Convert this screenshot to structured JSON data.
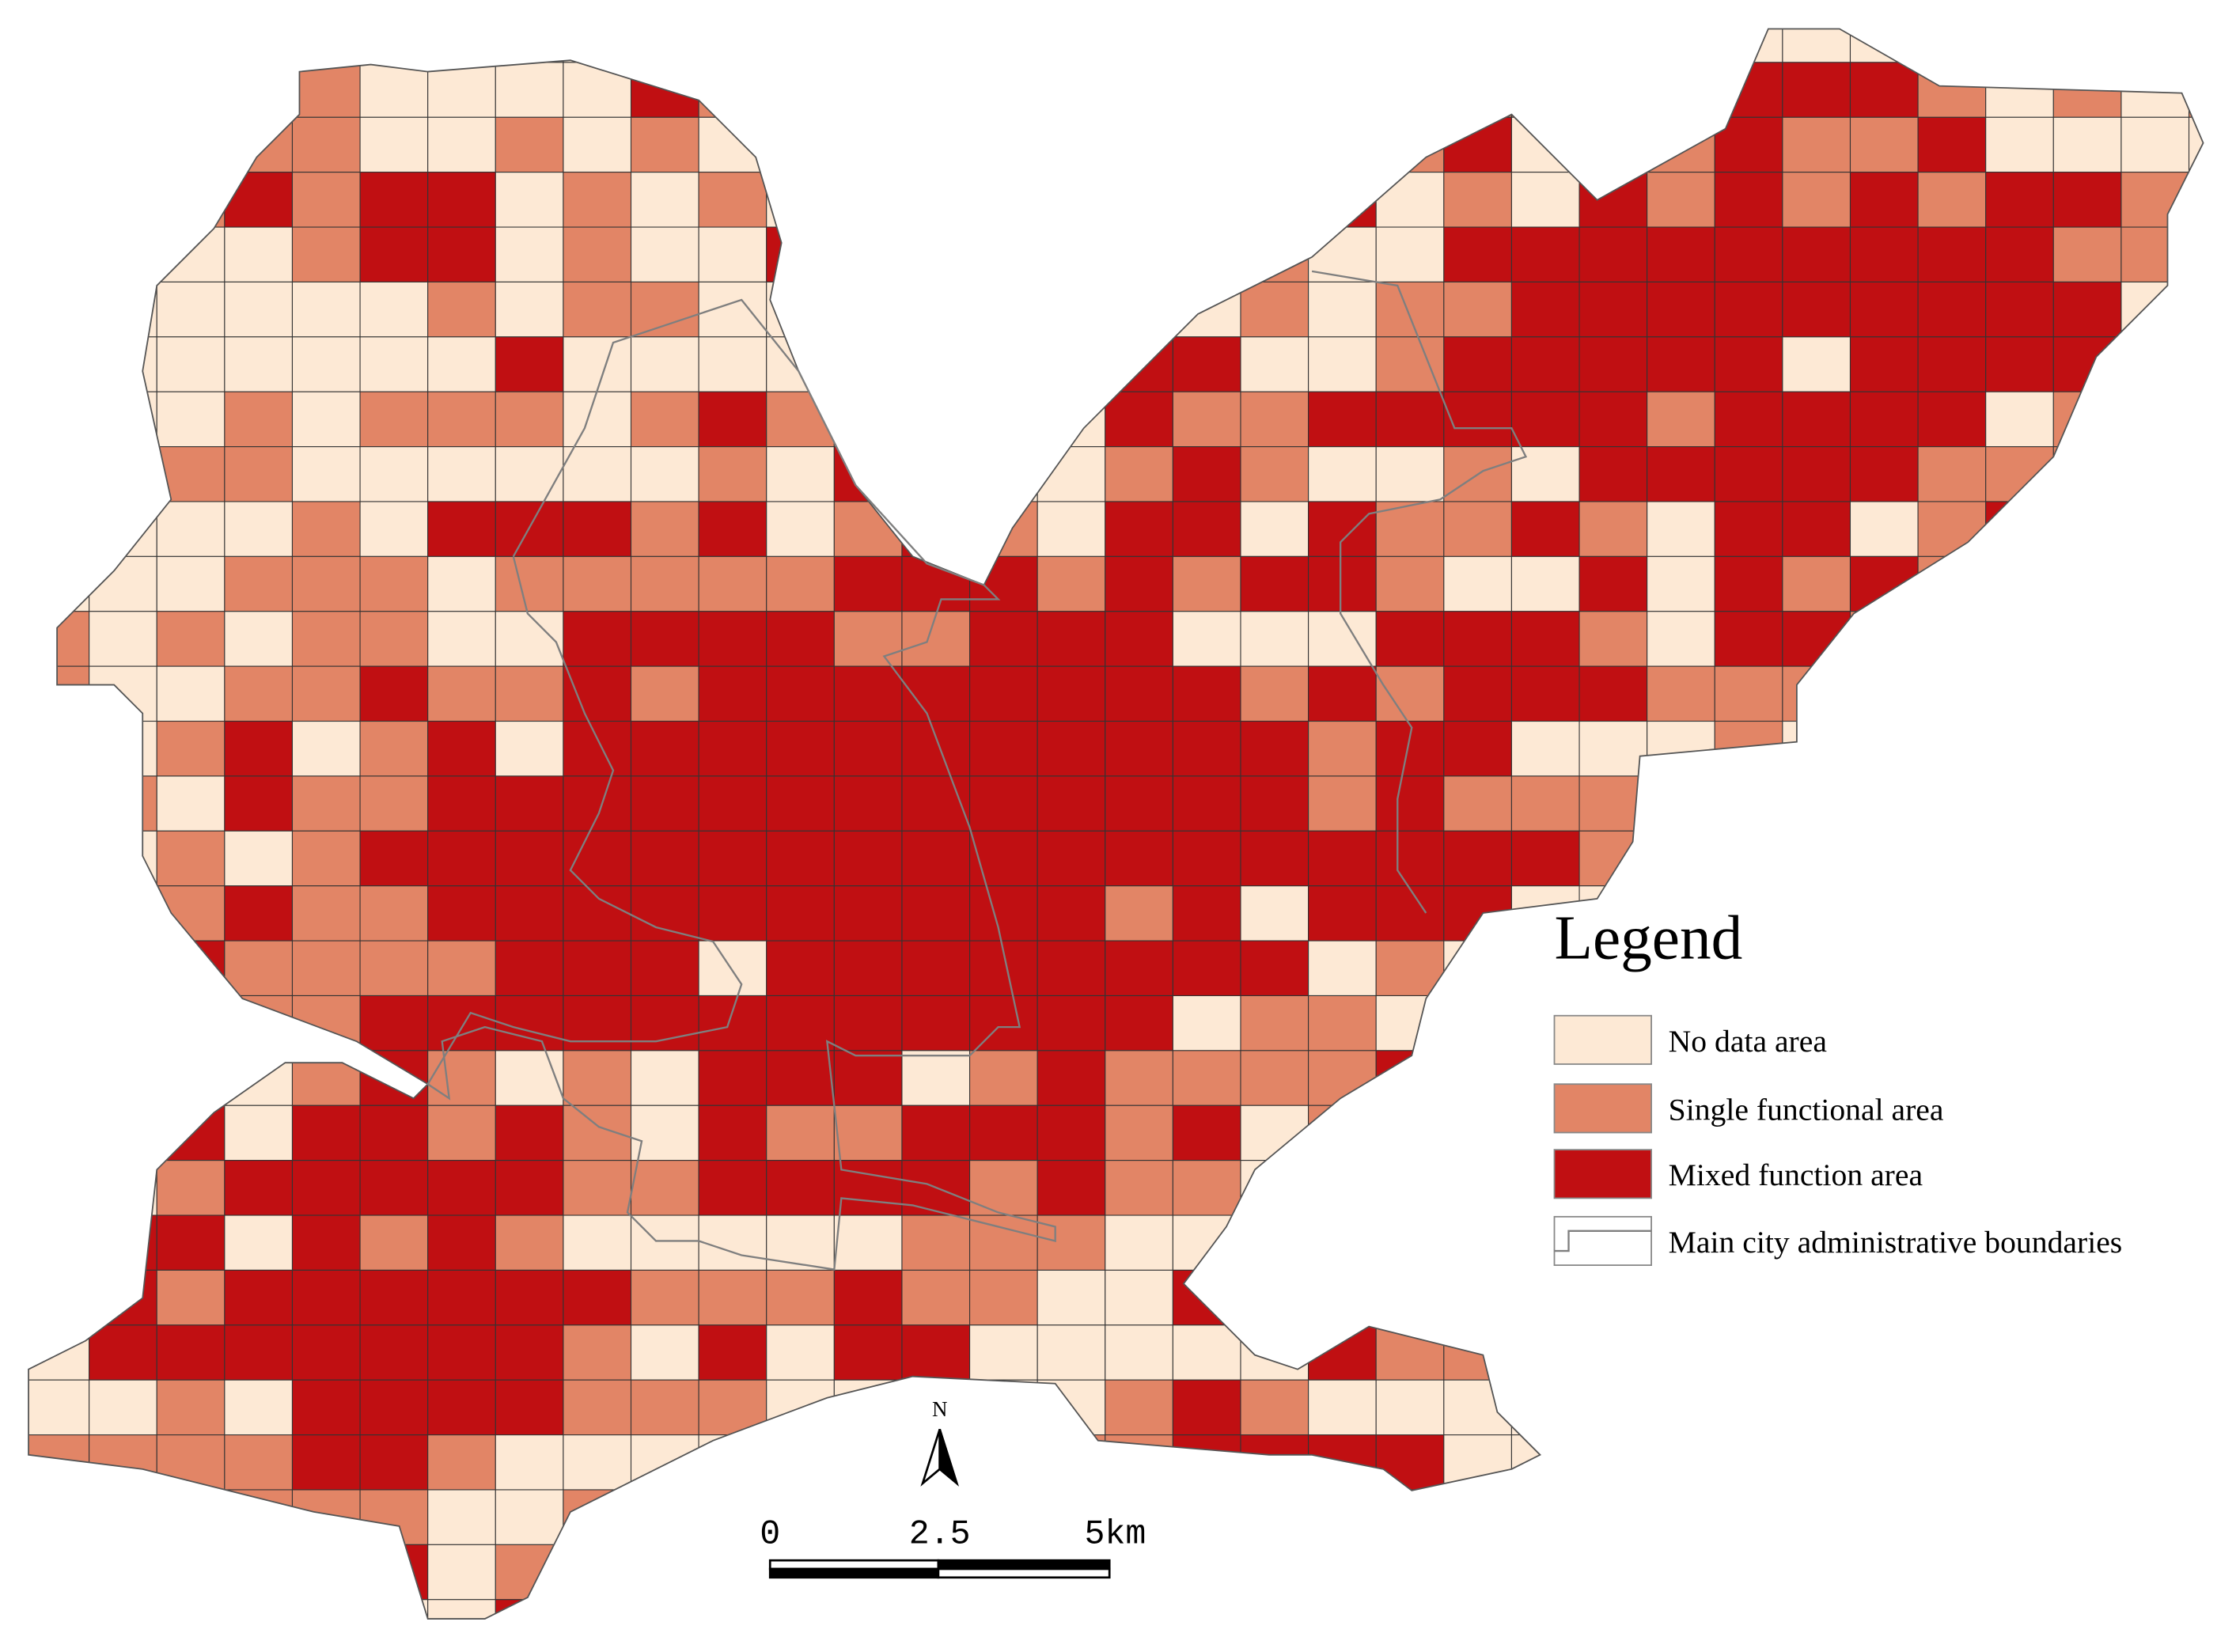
{
  "legend": {
    "title": "Legend",
    "items": [
      {
        "label": "No data area",
        "color": "#fde9d5"
      },
      {
        "label": "Single functional area",
        "color": "#e28566"
      },
      {
        "label": "Mixed function area",
        "color": "#c00f12"
      },
      {
        "label": "Main city administrative boundaries",
        "color": "#7f7f7f"
      }
    ]
  },
  "north_arrow": {
    "label": "N"
  },
  "scale_bar": {
    "labels": [
      "0",
      "2.5",
      "5km"
    ]
  }
}
